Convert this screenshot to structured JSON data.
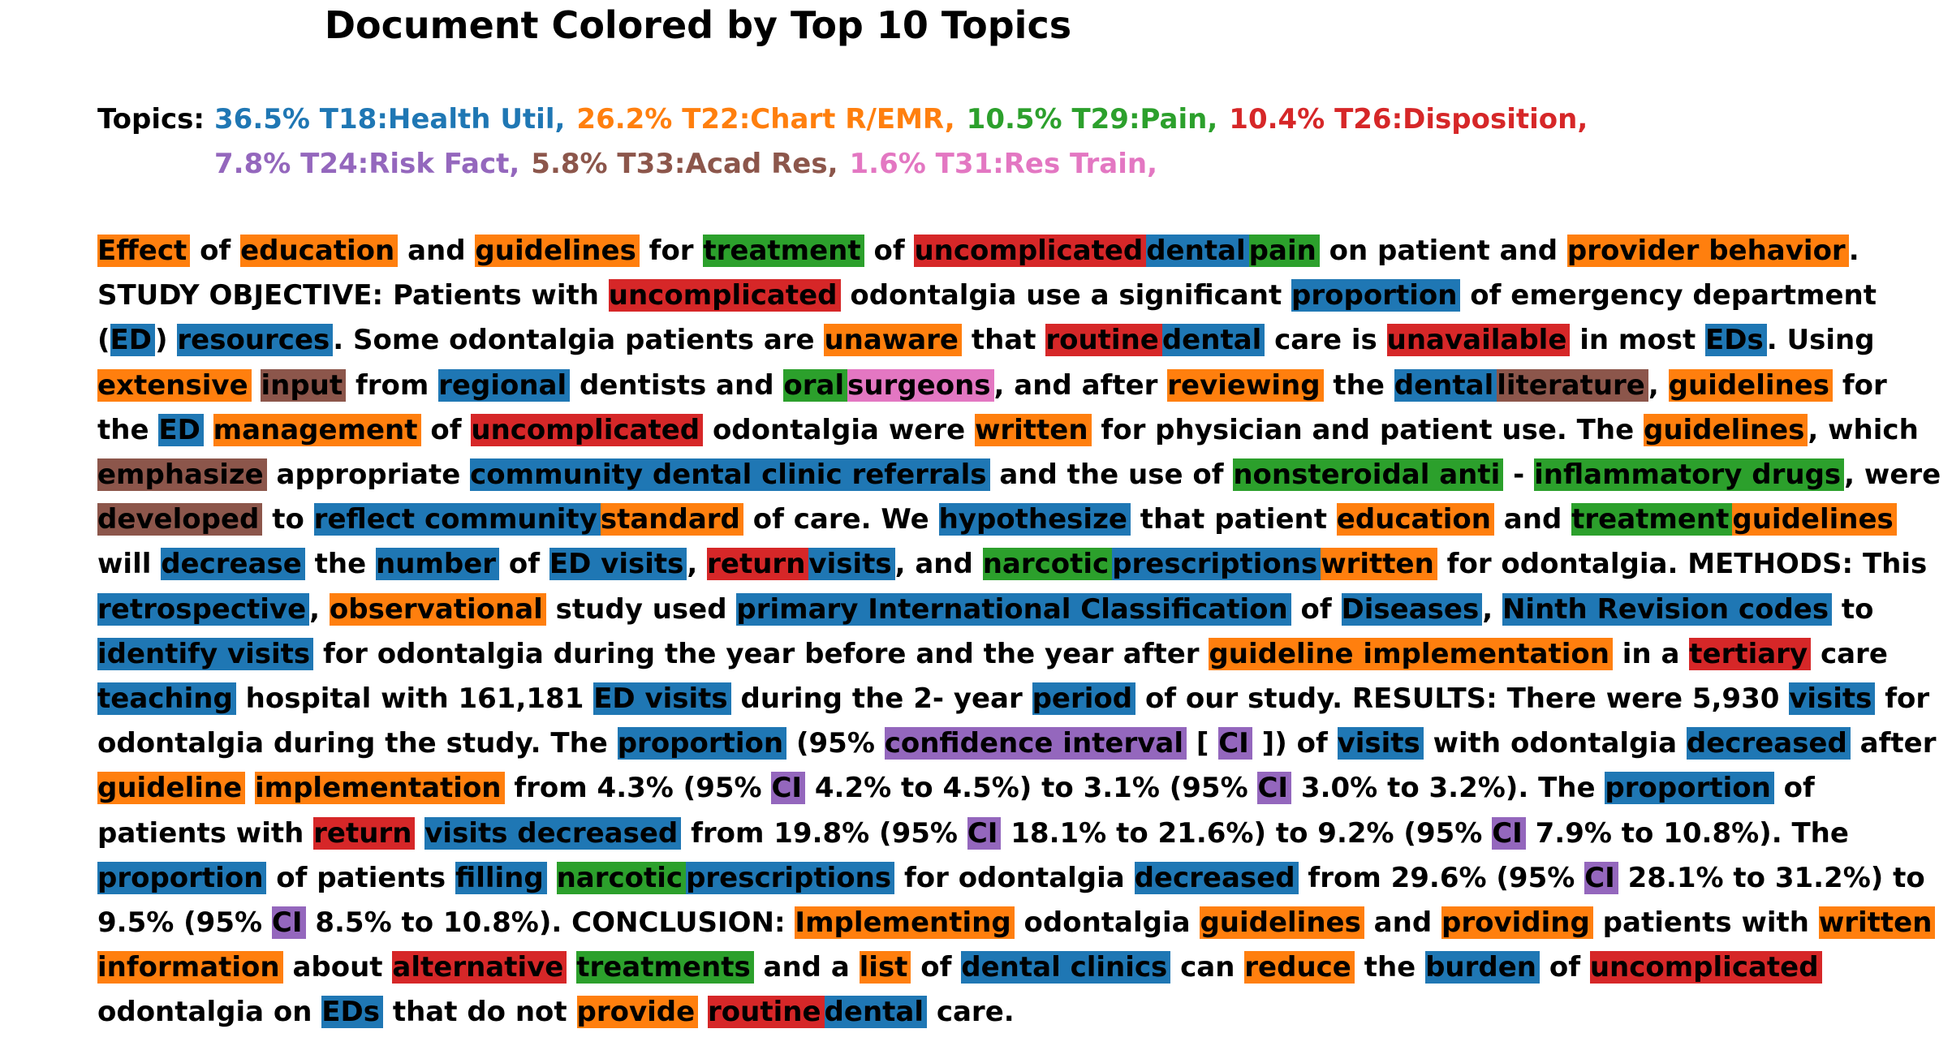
{
  "title": "Document Colored by Top 10 Topics",
  "topics_label": "Topics:",
  "colors": {
    "blue": "#1f77b4",
    "orange": "#ff7f0e",
    "green": "#2ca02c",
    "red": "#d62728",
    "purple": "#9467bd",
    "brown": "#8c564b",
    "pink": "#e377c2"
  },
  "topics": [
    {
      "text": "36.5% T18:Health Util,",
      "color": "blue"
    },
    {
      "text": "26.2% T22:Chart R/EMR,",
      "color": "orange"
    },
    {
      "text": "10.5% T29:Pain,",
      "color": "green"
    },
    {
      "text": "10.4% T26:Disposition,",
      "color": "red"
    },
    {
      "text": "7.8% T24:Risk Fact,",
      "color": "purple"
    },
    {
      "text": "5.8% T33:Acad Res,",
      "color": "brown"
    },
    {
      "text": "1.6% T31:Res Train,",
      "color": "pink"
    }
  ],
  "document_segments": [
    {
      "t": "Effect",
      "c": "orange"
    },
    {
      "t": " of "
    },
    {
      "t": "education",
      "c": "orange"
    },
    {
      "t": " and "
    },
    {
      "t": "guidelines",
      "c": "orange"
    },
    {
      "t": " for "
    },
    {
      "t": "treatment",
      "c": "green"
    },
    {
      "t": " of "
    },
    {
      "t": "uncomplicated",
      "c": "red"
    },
    {
      "t": "dental",
      "c": "blue"
    },
    {
      "t": "pain",
      "c": "green"
    },
    {
      "t": " on patient and "
    },
    {
      "t": "provider behavior",
      "c": "orange"
    },
    {
      "t": ". STUDY OBJECTIVE: Patients with "
    },
    {
      "t": "uncomplicated",
      "c": "red"
    },
    {
      "t": " odontalgia use a significant "
    },
    {
      "t": "proportion",
      "c": "blue"
    },
    {
      "t": " of emergency department ("
    },
    {
      "t": "ED",
      "c": "blue"
    },
    {
      "t": ") "
    },
    {
      "t": "resources",
      "c": "blue"
    },
    {
      "t": ". Some odontalgia patients are "
    },
    {
      "t": "unaware",
      "c": "orange"
    },
    {
      "t": " that "
    },
    {
      "t": "routine",
      "c": "red"
    },
    {
      "t": "dental",
      "c": "blue"
    },
    {
      "t": " care is "
    },
    {
      "t": "unavailable",
      "c": "red"
    },
    {
      "t": " in most "
    },
    {
      "t": "EDs",
      "c": "blue"
    },
    {
      "t": ". Using "
    },
    {
      "t": "extensive",
      "c": "orange"
    },
    {
      "t": " "
    },
    {
      "t": "input",
      "c": "brown"
    },
    {
      "t": " from "
    },
    {
      "t": "regional",
      "c": "blue"
    },
    {
      "t": " dentists and "
    },
    {
      "t": "oral",
      "c": "green"
    },
    {
      "t": "surgeons",
      "c": "pink"
    },
    {
      "t": ", and after "
    },
    {
      "t": "reviewing",
      "c": "orange"
    },
    {
      "t": " the "
    },
    {
      "t": "dental",
      "c": "blue"
    },
    {
      "t": "literature",
      "c": "brown"
    },
    {
      "t": ", "
    },
    {
      "t": "guidelines",
      "c": "orange"
    },
    {
      "t": " for the "
    },
    {
      "t": "ED",
      "c": "blue"
    },
    {
      "t": " "
    },
    {
      "t": "management",
      "c": "orange"
    },
    {
      "t": " of "
    },
    {
      "t": "uncomplicated",
      "c": "red"
    },
    {
      "t": " odontalgia were "
    },
    {
      "t": "written",
      "c": "orange"
    },
    {
      "t": " for physician and patient use. The "
    },
    {
      "t": "guidelines",
      "c": "orange"
    },
    {
      "t": ", which "
    },
    {
      "t": "emphasize",
      "c": "brown"
    },
    {
      "t": " appropriate "
    },
    {
      "t": "community dental clinic referrals",
      "c": "blue"
    },
    {
      "t": " and the use of "
    },
    {
      "t": "nonsteroidal anti",
      "c": "green"
    },
    {
      "t": " - "
    },
    {
      "t": "inflammatory drugs",
      "c": "green"
    },
    {
      "t": ", were "
    },
    {
      "t": "developed",
      "c": "brown"
    },
    {
      "t": " to "
    },
    {
      "t": "reflect community",
      "c": "blue"
    },
    {
      "t": "standard",
      "c": "orange"
    },
    {
      "t": " of care. We "
    },
    {
      "t": "hypothesize",
      "c": "blue"
    },
    {
      "t": " that patient "
    },
    {
      "t": "education",
      "c": "orange"
    },
    {
      "t": " and "
    },
    {
      "t": "treatment",
      "c": "green"
    },
    {
      "t": "guidelines",
      "c": "orange"
    },
    {
      "t": " will "
    },
    {
      "t": "decrease",
      "c": "blue"
    },
    {
      "t": " the "
    },
    {
      "t": "number",
      "c": "blue"
    },
    {
      "t": " of "
    },
    {
      "t": "ED visits",
      "c": "blue"
    },
    {
      "t": ", "
    },
    {
      "t": "return",
      "c": "red"
    },
    {
      "t": "visits",
      "c": "blue"
    },
    {
      "t": ", and "
    },
    {
      "t": "narcotic",
      "c": "green"
    },
    {
      "t": "prescriptions",
      "c": "blue"
    },
    {
      "t": "written",
      "c": "orange"
    },
    {
      "t": " for odontalgia. METHODS: This "
    },
    {
      "t": "retrospective",
      "c": "blue"
    },
    {
      "t": ", "
    },
    {
      "t": "observational",
      "c": "orange"
    },
    {
      "t": " study used "
    },
    {
      "t": "primary International Classification",
      "c": "blue"
    },
    {
      "t": " of "
    },
    {
      "t": "Diseases",
      "c": "blue"
    },
    {
      "t": ", "
    },
    {
      "t": "Ninth Revision codes",
      "c": "blue"
    },
    {
      "t": " to "
    },
    {
      "t": "identify visits",
      "c": "blue"
    },
    {
      "t": " for odontalgia during the year before and the year after "
    },
    {
      "t": "guideline implementation",
      "c": "orange"
    },
    {
      "t": " in a "
    },
    {
      "t": "tertiary",
      "c": "red"
    },
    {
      "t": " care "
    },
    {
      "t": "teaching",
      "c": "blue"
    },
    {
      "t": " hospital with 161,181 "
    },
    {
      "t": "ED visits",
      "c": "blue"
    },
    {
      "t": " during the 2- year "
    },
    {
      "t": "period",
      "c": "blue"
    },
    {
      "t": " of our study. RESULTS: There were 5,930 "
    },
    {
      "t": "visits",
      "c": "blue"
    },
    {
      "t": " for odontalgia during the study. The "
    },
    {
      "t": "proportion",
      "c": "blue"
    },
    {
      "t": " (95% "
    },
    {
      "t": "confidence interval",
      "c": "purple"
    },
    {
      "t": " [ "
    },
    {
      "t": "CI",
      "c": "purple"
    },
    {
      "t": " ]) of "
    },
    {
      "t": "visits",
      "c": "blue"
    },
    {
      "t": " with odontalgia "
    },
    {
      "t": "decreased",
      "c": "blue"
    },
    {
      "t": " after "
    },
    {
      "t": "guideline",
      "c": "orange"
    },
    {
      "t": " "
    },
    {
      "t": "implementation",
      "c": "orange"
    },
    {
      "t": " from 4.3% (95% "
    },
    {
      "t": "CI",
      "c": "purple"
    },
    {
      "t": " 4.2% to 4.5%) to 3.1% (95% "
    },
    {
      "t": "CI",
      "c": "purple"
    },
    {
      "t": " 3.0% to 3.2%). The "
    },
    {
      "t": "proportion",
      "c": "blue"
    },
    {
      "t": " of patients with "
    },
    {
      "t": "return",
      "c": "red"
    },
    {
      "t": " "
    },
    {
      "t": "visits decreased",
      "c": "blue"
    },
    {
      "t": " from 19.8% (95% "
    },
    {
      "t": "CI",
      "c": "purple"
    },
    {
      "t": " 18.1% to 21.6%) to 9.2% (95% "
    },
    {
      "t": "CI",
      "c": "purple"
    },
    {
      "t": " 7.9% to 10.8%). The "
    },
    {
      "t": "proportion",
      "c": "blue"
    },
    {
      "t": " of patients "
    },
    {
      "t": "filling",
      "c": "blue"
    },
    {
      "t": " "
    },
    {
      "t": "narcotic",
      "c": "green"
    },
    {
      "t": "prescriptions",
      "c": "blue"
    },
    {
      "t": " for odontalgia "
    },
    {
      "t": "decreased",
      "c": "blue"
    },
    {
      "t": " from 29.6% (95% "
    },
    {
      "t": "CI",
      "c": "purple"
    },
    {
      "t": " 28.1% to 31.2%) to 9.5% (95% "
    },
    {
      "t": "CI",
      "c": "purple"
    },
    {
      "t": " 8.5% to 10.8%). CONCLUSION: "
    },
    {
      "t": "Implementing",
      "c": "orange"
    },
    {
      "t": " odontalgia "
    },
    {
      "t": "guidelines",
      "c": "orange"
    },
    {
      "t": " and "
    },
    {
      "t": "providing",
      "c": "orange"
    },
    {
      "t": " patients with "
    },
    {
      "t": "written information",
      "c": "orange"
    },
    {
      "t": " about "
    },
    {
      "t": "alternative",
      "c": "red"
    },
    {
      "t": " "
    },
    {
      "t": "treatments",
      "c": "green"
    },
    {
      "t": " and a "
    },
    {
      "t": "list",
      "c": "orange"
    },
    {
      "t": " of "
    },
    {
      "t": "dental clinics",
      "c": "blue"
    },
    {
      "t": " can "
    },
    {
      "t": "reduce",
      "c": "orange"
    },
    {
      "t": " the "
    },
    {
      "t": "burden",
      "c": "blue"
    },
    {
      "t": " of "
    },
    {
      "t": "uncomplicated",
      "c": "red"
    },
    {
      "t": " odontalgia on "
    },
    {
      "t": "EDs",
      "c": "blue"
    },
    {
      "t": " that do not "
    },
    {
      "t": "provide",
      "c": "orange"
    },
    {
      "t": " "
    },
    {
      "t": "routine",
      "c": "red"
    },
    {
      "t": "dental",
      "c": "blue"
    },
    {
      "t": " care."
    }
  ]
}
